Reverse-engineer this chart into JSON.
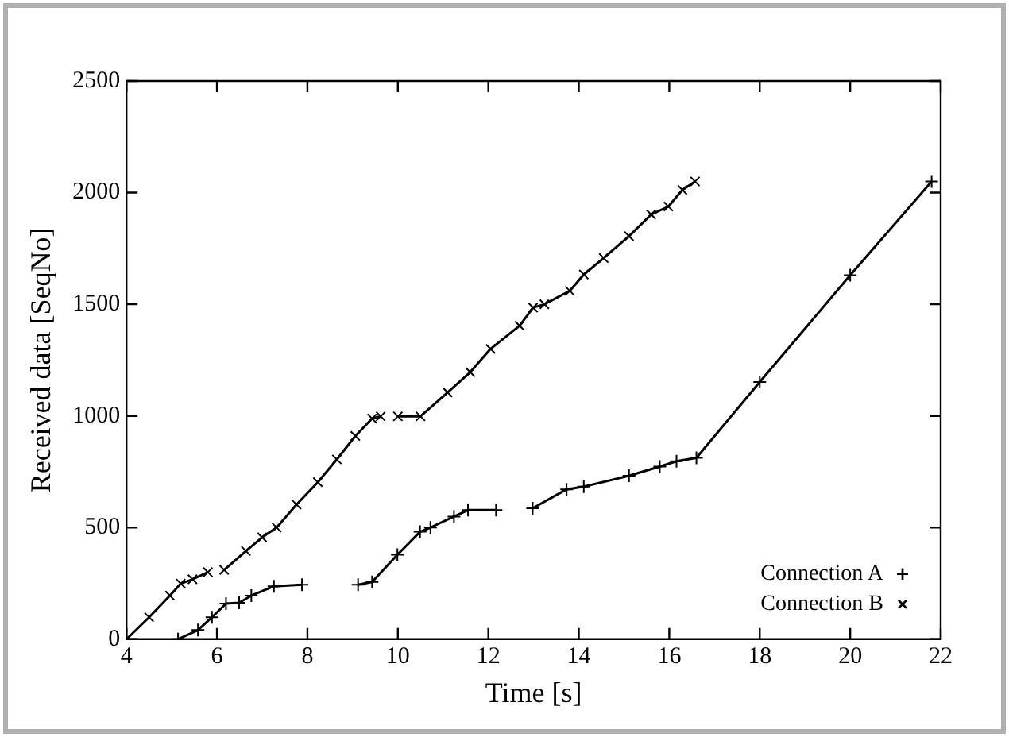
{
  "chart_data": {
    "type": "line",
    "xlabel": "Time [s]",
    "ylabel": "Received data [SeqNo]",
    "xlim": [
      4,
      22
    ],
    "xticks": [
      4,
      6,
      8,
      10,
      12,
      14,
      16,
      18,
      20,
      22
    ],
    "ylim": [
      0,
      2500
    ],
    "yticks": [
      0,
      500,
      1000,
      1500,
      2000,
      2500
    ],
    "grid": false,
    "legend": "bottom right",
    "line_style": "solid",
    "series": [
      {
        "name": "Connection A",
        "color": "#000000",
        "marker": "cross",
        "x": [
          5.14,
          5.58,
          5.89,
          6.2,
          6.49,
          6.76,
          7.26,
          7.88,
          8.5,
          9.12,
          9.43,
          9.99,
          10.49,
          10.72,
          11.24,
          11.55,
          12.17,
          12.6,
          12.98,
          13.73,
          14.11,
          15.11,
          15.79,
          16.16,
          16.6,
          18,
          20,
          21.8
        ],
        "values": [
          0,
          41,
          98,
          159,
          163,
          195,
          237,
          244,
          null,
          244,
          256,
          378,
          481,
          500,
          549,
          578,
          578,
          null,
          586,
          671,
          683,
          732,
          773,
          797,
          812,
          1152,
          1630,
          2050
        ]
      },
      {
        "name": "Connection B",
        "color": "#000000",
        "marker": "crossRot",
        "x": [
          4.0,
          4.5,
          4.96,
          5.2,
          5.46,
          5.8,
          5.98,
          6.16,
          6.64,
          7.0,
          7.32,
          7.76,
          8.23,
          8.65,
          9.06,
          9.43,
          9.62,
          9.8,
          10.0,
          10.5,
          11.1,
          11.6,
          12.05,
          12.69,
          12.99,
          13.24,
          13.8,
          14.11,
          14.55,
          15.11,
          15.6,
          15.98,
          16.29,
          16.57
        ],
        "values": [
          0,
          98,
          195,
          249,
          268,
          300,
          null,
          310,
          395,
          456,
          500,
          603,
          703,
          805,
          910,
          988,
          998,
          null,
          998,
          998,
          1105,
          1196,
          1300,
          1404,
          1485,
          1500,
          1560,
          1633,
          1707,
          1805,
          1902,
          1938,
          2012,
          2050
        ]
      }
    ]
  }
}
